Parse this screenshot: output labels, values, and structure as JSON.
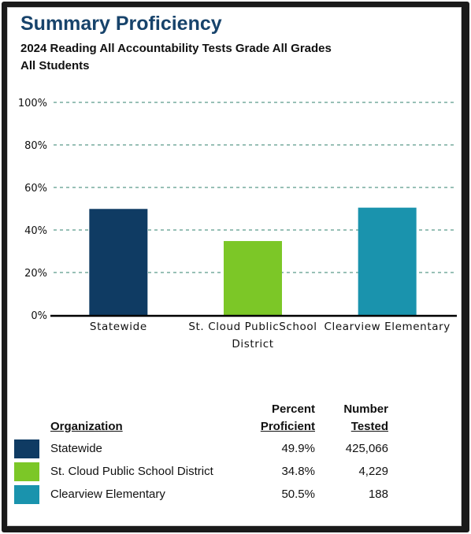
{
  "header": {
    "title": "Summary Proficiency",
    "subtitle_line1": "2024 Reading All Accountability Tests Grade All Grades",
    "subtitle_line2": "All Students"
  },
  "chart_data": {
    "type": "bar",
    "categories": [
      "Statewide",
      "St. Cloud PublicSchool District",
      "Clearview Elementary"
    ],
    "category_lines": [
      [
        "Statewide"
      ],
      [
        "St. Cloud PublicSchool",
        "District"
      ],
      [
        "Clearview Elementary"
      ]
    ],
    "values": [
      49.9,
      34.8,
      50.5
    ],
    "colors": [
      "#0f3b63",
      "#7cc727",
      "#1a93ad"
    ],
    "ylim": [
      0,
      100
    ],
    "yticks": [
      0,
      20,
      40,
      60,
      80,
      100
    ],
    "ytick_labels": [
      "0%",
      "20%",
      "40%",
      "60%",
      "80%",
      "100%"
    ],
    "grid": true,
    "grid_color": "#5a9a8a"
  },
  "table": {
    "col_org": "Organization",
    "col_pct_line1": "Percent",
    "col_pct_line2": "Proficient",
    "col_num_line1": "Number",
    "col_num_line2": "Tested",
    "rows": [
      {
        "organization": "Statewide",
        "percent": "49.9%",
        "tested": "425,066",
        "color": "#0f3b63"
      },
      {
        "organization": "St. Cloud Public School District",
        "percent": "34.8%",
        "tested": "4,229",
        "color": "#7cc727"
      },
      {
        "organization": "Clearview Elementary",
        "percent": "50.5%",
        "tested": "188",
        "color": "#1a93ad"
      }
    ]
  }
}
